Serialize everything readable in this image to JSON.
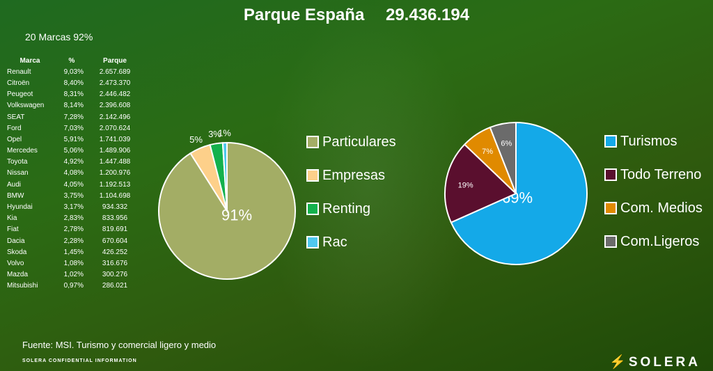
{
  "header": {
    "title": "Parque  España",
    "total": "29.436.194"
  },
  "summary": "20 Marcas  92%",
  "table": {
    "headers": [
      "Marca",
      "%",
      "Parque"
    ],
    "rows": [
      [
        "Renault",
        "9,03%",
        "2.657.689"
      ],
      [
        "Citroën",
        "8,40%",
        "2.473.370"
      ],
      [
        "Peugeot",
        "8,31%",
        "2.446.482"
      ],
      [
        "Volkswagen",
        "8,14%",
        "2.396.608"
      ],
      [
        "SEAT",
        "7,28%",
        "2.142.496"
      ],
      [
        "Ford",
        "7,03%",
        "2.070.624"
      ],
      [
        "Opel",
        "5,91%",
        "1.741.039"
      ],
      [
        "Mercedes",
        "5,06%",
        "1.489.906"
      ],
      [
        "Toyota",
        "4,92%",
        "1.447.488"
      ],
      [
        "Nissan",
        "4,08%",
        "1.200.976"
      ],
      [
        "Audi",
        "4,05%",
        "1.192.513"
      ],
      [
        "BMW",
        "3,75%",
        "1.104.698"
      ],
      [
        "Hyundai",
        "3,17%",
        "934.332"
      ],
      [
        "Kia",
        "2,83%",
        "833.956"
      ],
      [
        "Fiat",
        "2,78%",
        "819.691"
      ],
      [
        "Dacia",
        "2,28%",
        "670.604"
      ],
      [
        "Skoda",
        "1,45%",
        "426.252"
      ],
      [
        "Volvo",
        "1,08%",
        "316.676"
      ],
      [
        "Mazda",
        "1,02%",
        "300.276"
      ],
      [
        "Mitsubishi",
        "0,97%",
        "286.021"
      ]
    ]
  },
  "chart_data": [
    {
      "type": "pie",
      "categories": [
        "Particulares",
        "Empresas",
        "Renting",
        "Rac"
      ],
      "values": [
        91,
        5,
        3,
        1
      ],
      "labels": [
        "91%",
        "5%",
        "3%",
        "1%"
      ],
      "colors": [
        "#a3ad65",
        "#fdd08a",
        "#14b14d",
        "#4fc8ee"
      ],
      "legend": "right"
    },
    {
      "type": "pie",
      "categories": [
        "Turismos",
        "Todo Terreno",
        "Com. Medios",
        "Com.Ligeros"
      ],
      "values": [
        69,
        19,
        7,
        6
      ],
      "labels": [
        "69%",
        "19%",
        "7%",
        "6%"
      ],
      "colors": [
        "#14a9e8",
        "#5a0f2e",
        "#e08a00",
        "#6b6b6b"
      ],
      "legend": "right"
    }
  ],
  "footer": {
    "source": "Fuente: MSI. Turismo y comercial ligero y medio",
    "confidential": "SOLERA CONFIDENTIAL INFORMATION",
    "logo": "SOLERA"
  }
}
